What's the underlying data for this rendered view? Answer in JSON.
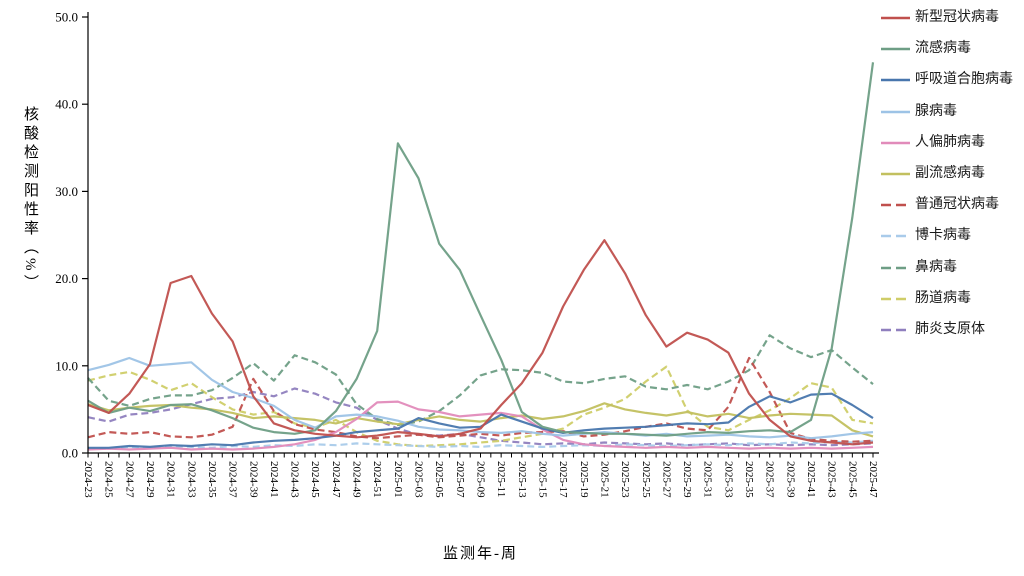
{
  "chart_data": {
    "type": "line",
    "title": "",
    "xlabel": "监测年-周",
    "ylabel": "核酸检测阳性率（%）",
    "ylim": [
      0,
      50
    ],
    "grid": false,
    "legend_position": "right",
    "axis_color": "#000000",
    "y_ticks": [
      {
        "value": 0,
        "label": "0.0"
      },
      {
        "value": 10,
        "label": "10.0"
      },
      {
        "value": 20,
        "label": "20.0"
      },
      {
        "value": 30,
        "label": "30.0"
      },
      {
        "value": 40,
        "label": "40.0"
      },
      {
        "value": 50,
        "label": "50.0"
      }
    ],
    "x_minor_ticks_per_interval": 1,
    "categories": [
      "2024-23",
      "2024-25",
      "2024-27",
      "2024-29",
      "2024-31",
      "2024-33",
      "2024-35",
      "2024-37",
      "2024-39",
      "2024-41",
      "2024-43",
      "2024-45",
      "2024-47",
      "2024-49",
      "2024-51",
      "2025-01",
      "2025-03",
      "2025-05",
      "2025-07",
      "2025-09",
      "2025-11",
      "2025-13",
      "2025-15",
      "2025-17",
      "2025-19",
      "2025-21",
      "2025-23",
      "2025-25",
      "2025-27",
      "2025-29",
      "2025-31",
      "2025-33",
      "2025-35",
      "2025-37",
      "2025-39",
      "2025-41",
      "2025-43",
      "2025-45",
      "2025-47"
    ],
    "series": [
      {
        "id": "novel-coronavirus",
        "name": "新型冠状病毒",
        "color": "#C0504D",
        "style": "solid",
        "values": [
          5.5,
          4.6,
          6.8,
          10.2,
          19.5,
          20.3,
          16.0,
          12.8,
          6.5,
          3.4,
          2.6,
          2.2,
          2.0,
          1.8,
          2.0,
          2.4,
          2.2,
          1.9,
          2.2,
          2.8,
          5.5,
          8.0,
          11.5,
          16.8,
          21.0,
          24.4,
          20.6,
          15.8,
          12.2,
          13.8,
          13.0,
          11.5,
          6.8,
          3.8,
          1.9,
          1.4,
          1.2,
          1.0,
          1.2
        ]
      },
      {
        "id": "influenza",
        "name": "流感病毒",
        "color": "#6E9E85",
        "style": "solid",
        "values": [
          6.0,
          4.6,
          5.2,
          4.8,
          5.5,
          5.6,
          4.9,
          4.0,
          2.9,
          2.4,
          2.2,
          2.6,
          4.8,
          8.5,
          14.0,
          35.5,
          31.5,
          24.0,
          21.0,
          15.8,
          10.7,
          4.7,
          3.0,
          2.4,
          2.3,
          2.2,
          2.2,
          2.1,
          2.0,
          2.2,
          2.4,
          2.3,
          2.5,
          2.6,
          2.4,
          3.8,
          12.0,
          27.0,
          44.8
        ]
      },
      {
        "id": "rsv",
        "name": "呼吸道合胞病毒",
        "color": "#4876AD",
        "style": "solid",
        "values": [
          0.6,
          0.6,
          0.8,
          0.7,
          0.9,
          0.8,
          1.0,
          0.9,
          1.2,
          1.4,
          1.5,
          1.7,
          2.0,
          2.4,
          2.6,
          2.8,
          4.0,
          3.4,
          2.9,
          3.0,
          4.4,
          3.6,
          2.8,
          2.3,
          2.6,
          2.8,
          2.9,
          3.0,
          3.2,
          3.4,
          3.3,
          3.5,
          5.3,
          6.5,
          5.8,
          6.7,
          6.8,
          5.5,
          4.0
        ]
      },
      {
        "id": "adenovirus",
        "name": "腺病毒",
        "color": "#9DC3E6",
        "style": "solid",
        "values": [
          9.5,
          10.1,
          10.9,
          10.0,
          10.2,
          10.4,
          8.4,
          7.0,
          6.3,
          5.4,
          3.8,
          2.9,
          4.2,
          4.4,
          4.2,
          3.7,
          3.0,
          2.7,
          2.6,
          2.4,
          2.3,
          2.5,
          2.2,
          2.0,
          2.2,
          2.4,
          2.2,
          2.0,
          2.2,
          1.9,
          2.0,
          2.1,
          1.9,
          1.8,
          2.0,
          1.7,
          1.9,
          2.2,
          2.4
        ]
      },
      {
        "id": "hmpv",
        "name": "人偏肺病毒",
        "color": "#E18BBA",
        "style": "solid",
        "values": [
          0.4,
          0.5,
          0.4,
          0.5,
          0.6,
          0.4,
          0.5,
          0.4,
          0.5,
          0.7,
          1.0,
          1.5,
          2.4,
          3.9,
          5.8,
          5.9,
          5.0,
          4.7,
          4.2,
          4.4,
          4.6,
          4.2,
          2.7,
          1.5,
          1.0,
          0.8,
          0.7,
          0.6,
          0.7,
          0.6,
          0.7,
          0.6,
          0.5,
          0.6,
          0.5,
          0.6,
          0.5,
          0.6,
          0.7
        ]
      },
      {
        "id": "parainfluenza",
        "name": "副流感病毒",
        "color": "#C2C05F",
        "style": "solid",
        "values": [
          5.6,
          4.9,
          5.2,
          5.4,
          5.5,
          5.2,
          5.0,
          4.6,
          4.0,
          4.2,
          4.0,
          3.8,
          3.4,
          4.0,
          3.6,
          3.3,
          3.8,
          4.2,
          3.8,
          3.6,
          4.0,
          4.3,
          3.9,
          4.2,
          4.8,
          5.7,
          5.0,
          4.6,
          4.3,
          4.7,
          4.2,
          4.5,
          4.0,
          4.3,
          4.5,
          4.4,
          4.3,
          2.6,
          1.9
        ]
      },
      {
        "id": "common-coronavirus",
        "name": "普通冠状病毒",
        "color": "#C0504D",
        "style": "dashed",
        "values": [
          1.8,
          2.4,
          2.2,
          2.4,
          1.9,
          1.8,
          2.1,
          3.0,
          8.5,
          4.8,
          3.3,
          2.7,
          2.4,
          1.9,
          1.7,
          1.9,
          2.1,
          1.8,
          2.0,
          2.2,
          2.0,
          2.3,
          2.4,
          2.5,
          1.9,
          2.1,
          2.5,
          3.0,
          3.4,
          2.8,
          2.6,
          5.3,
          10.9,
          7.0,
          2.3,
          1.6,
          1.4,
          1.3,
          1.4
        ]
      },
      {
        "id": "bocavirus",
        "name": "博卡病毒",
        "color": "#A9CBEA",
        "style": "dashed",
        "values": [
          0.5,
          0.5,
          0.7,
          0.6,
          0.8,
          0.7,
          0.6,
          0.8,
          0.7,
          0.9,
          0.8,
          1.0,
          0.9,
          1.1,
          1.0,
          0.9,
          0.8,
          0.7,
          0.8,
          0.7,
          0.9,
          0.8,
          0.7,
          0.8,
          0.9,
          0.8,
          1.0,
          0.9,
          0.8,
          0.9,
          1.0,
          0.9,
          1.1,
          1.0,
          1.2,
          1.1,
          1.3,
          1.2,
          1.4
        ]
      },
      {
        "id": "rhinovirus",
        "name": "鼻病毒",
        "color": "#6E9E85",
        "style": "dashed",
        "values": [
          8.6,
          6.0,
          5.4,
          6.2,
          6.6,
          6.6,
          7.2,
          8.6,
          10.3,
          8.3,
          11.2,
          10.4,
          9.0,
          5.6,
          3.9,
          3.2,
          3.6,
          4.8,
          6.6,
          8.9,
          9.6,
          9.5,
          9.2,
          8.2,
          8.0,
          8.5,
          8.8,
          7.6,
          7.3,
          7.8,
          7.3,
          8.2,
          9.5,
          13.5,
          12.0,
          11.0,
          11.8,
          9.8,
          7.9
        ]
      },
      {
        "id": "enterovirus",
        "name": "肠道病毒",
        "color": "#CFCD68",
        "style": "dashed",
        "values": [
          8.3,
          8.9,
          9.3,
          8.4,
          7.2,
          8.0,
          6.4,
          5.0,
          4.4,
          4.7,
          3.4,
          2.9,
          3.8,
          2.4,
          1.4,
          1.0,
          0.8,
          0.9,
          1.0,
          1.2,
          1.4,
          1.8,
          2.2,
          2.8,
          4.4,
          5.2,
          6.2,
          8.2,
          9.9,
          4.9,
          3.0,
          2.6,
          3.8,
          4.9,
          6.3,
          8.0,
          7.5,
          3.8,
          3.4
        ]
      },
      {
        "id": "mycoplasma-pneumoniae",
        "name": "肺炎支原体",
        "color": "#8F7FBE",
        "style": "dashed",
        "values": [
          4.1,
          3.6,
          4.4,
          4.6,
          5.0,
          5.6,
          6.2,
          6.4,
          7.0,
          6.5,
          7.4,
          6.8,
          5.8,
          5.2,
          3.8,
          2.8,
          2.1,
          2.0,
          2.2,
          1.8,
          1.4,
          1.2,
          1.0,
          1.1,
          1.0,
          1.2,
          1.1,
          1.0,
          1.1,
          0.9,
          1.0,
          1.1,
          0.9,
          1.0,
          0.9,
          1.0,
          0.9,
          1.0,
          1.1
        ]
      }
    ]
  }
}
